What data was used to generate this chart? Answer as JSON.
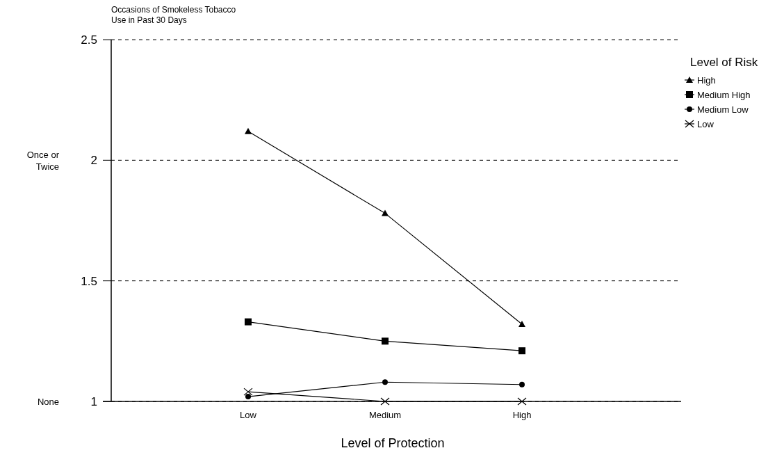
{
  "chart_data": {
    "type": "line",
    "ylabel": "Occasions of Smokeless Tobacco Use in Past 30 Days",
    "xlabel": "Level of Protection",
    "legend_title": "Level of Risk",
    "legend": "top right",
    "grid": "y",
    "categories": [
      "Low",
      "Medium",
      "High"
    ],
    "ylim": [
      1,
      2.5
    ],
    "yticks": [
      1,
      1.5,
      2,
      2.5
    ],
    "annotations": [
      "None",
      "Once or Twice"
    ],
    "series": [
      {
        "name": "High",
        "color": "#000000",
        "marker": "triangle",
        "values": [
          2.12,
          1.78,
          1.32
        ]
      },
      {
        "name": "Medium High",
        "color": "#000000",
        "marker": "square",
        "values": [
          1.33,
          1.25,
          1.21
        ]
      },
      {
        "name": "Medium Low",
        "color": "#000000",
        "marker": "circle",
        "values": [
          1.02,
          1.08,
          1.07
        ]
      },
      {
        "name": "Low",
        "color": "#000000",
        "marker": "cross",
        "values": [
          1.04,
          1.0,
          1.0
        ]
      }
    ]
  }
}
